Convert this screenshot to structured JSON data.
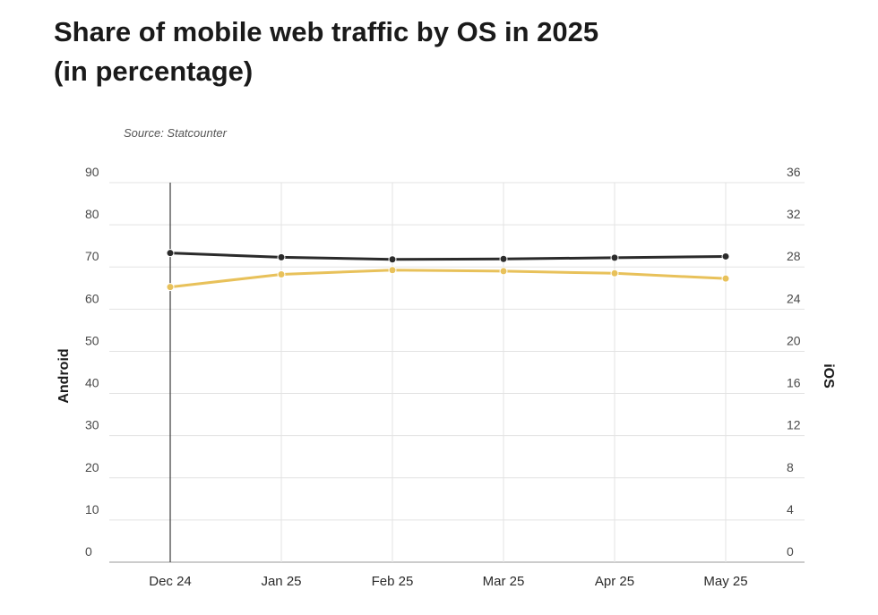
{
  "chart_data": {
    "type": "line",
    "title_line1": "Share of mobile web traffic by OS in 2025",
    "title_line2": "(in percentage)",
    "source": "Source: Statcounter",
    "categories": [
      "Dec 24",
      "Jan 25",
      "Feb 25",
      "Mar 25",
      "Apr 25",
      "May 25"
    ],
    "ylabel_left": "Android",
    "ylabel_right": "iOS",
    "ylim_left": [
      0,
      90
    ],
    "ylim_right": [
      0,
      36
    ],
    "yticks_left": [
      "0",
      "10",
      "20",
      "30",
      "40",
      "50",
      "60",
      "70",
      "80",
      "90"
    ],
    "yticks_right": [
      "0",
      "4",
      "8",
      "12",
      "16",
      "20",
      "24",
      "28",
      "32",
      "36"
    ],
    "grid": true,
    "series": [
      {
        "name": "Android",
        "axis": "left",
        "color": "#2b2b2b",
        "values": [
          73.3,
          72.3,
          71.8,
          71.9,
          72.2,
          72.5
        ]
      },
      {
        "name": "iOS",
        "axis": "right",
        "color": "#e8c15a",
        "values": [
          26.1,
          27.3,
          27.7,
          27.6,
          27.4,
          26.9
        ]
      }
    ]
  }
}
